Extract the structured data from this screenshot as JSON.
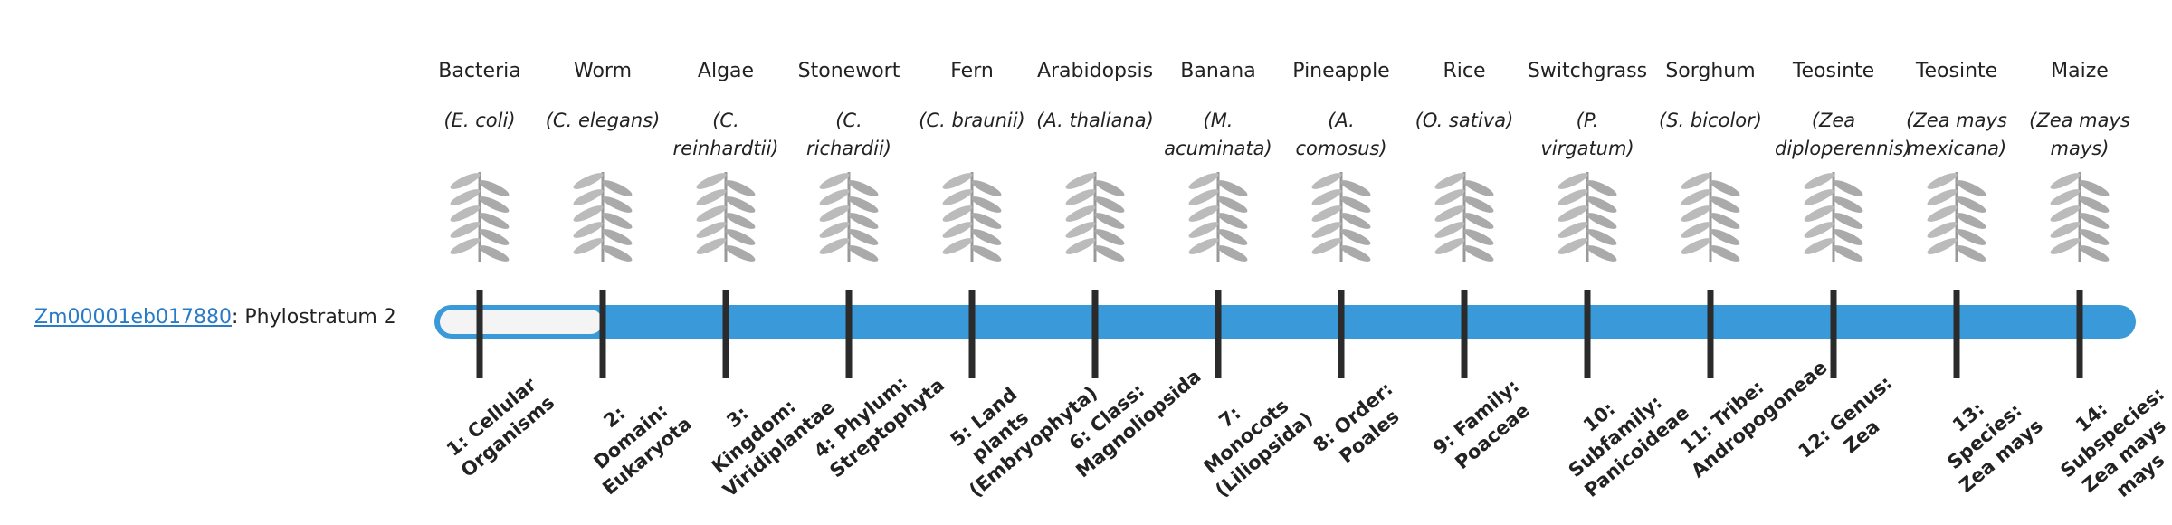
{
  "gene": {
    "id": "Zm00001eb017880",
    "status": ": Phylostratum 2",
    "phylostratum": 2
  },
  "columns": [
    {
      "name": "Bacteria",
      "species": "(E. coli)",
      "stratum": "1: Cellular Organisms"
    },
    {
      "name": "Worm",
      "species": "(C. elegans)",
      "stratum": "2: Domain: Eukaryota"
    },
    {
      "name": "Algae",
      "species": "(C. reinhardtii)",
      "stratum": "3: Kingdom: Viridiplantae"
    },
    {
      "name": "Stonewort",
      "species": "(C. richardii)",
      "stratum": "4: Phylum: Streptophyta"
    },
    {
      "name": "Fern",
      "species": "(C. braunii)",
      "stratum": "5: Land plants (Embryophyta)"
    },
    {
      "name": "Arabidopsis",
      "species": "(A. thaliana)",
      "stratum": "6: Class: Magnoliopsida"
    },
    {
      "name": "Banana",
      "species": "(M. acuminata)",
      "stratum": "7: Monocots (Liliopsida)"
    },
    {
      "name": "Pineapple",
      "species": "(A. comosus)",
      "stratum": "8: Order: Poales"
    },
    {
      "name": "Rice",
      "species": "(O. sativa)",
      "stratum": "9: Family: Poaceae"
    },
    {
      "name": "Switchgrass",
      "species": "(P. virgatum)",
      "stratum": "10: Subfamily: Panicoideae"
    },
    {
      "name": "Sorghum",
      "species": "(S. bicolor)",
      "stratum": "11: Tribe: Andropogoneae"
    },
    {
      "name": "Teosinte",
      "species": "(Zea diploperennis)",
      "stratum": "12: Genus: Zea"
    },
    {
      "name": "Teosinte",
      "species": "(Zea mays mexicana)",
      "stratum": "13: Species: Zea mays"
    },
    {
      "name": "Maize",
      "species": "(Zea mays mays)",
      "stratum": "14: Subspecies: Zea mays mays"
    }
  ]
}
